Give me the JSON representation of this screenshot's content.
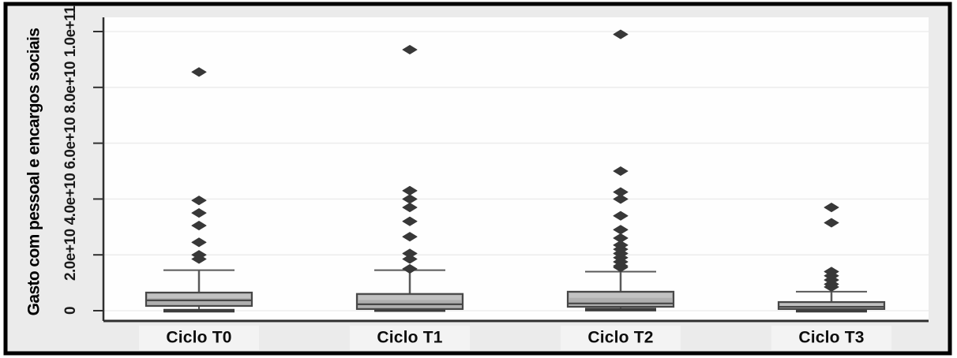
{
  "figure": {
    "ylabel": "Gasto com pessoal e encargos sociais"
  },
  "chart_data": {
    "type": "box",
    "title": "",
    "xlabel": "",
    "ylabel": "Gasto com pessoal e encargos sociais",
    "categories": [
      "Ciclo T0",
      "Ciclo T1",
      "Ciclo T2",
      "Ciclo T3"
    ],
    "y_tick_labels": [
      "0",
      "2.0e+10",
      "4.0e+10",
      "6.0e+10",
      "8.0e+10",
      "1.0e+11"
    ],
    "y_ticks": [
      0,
      20000000000.0,
      40000000000.0,
      60000000000.0,
      80000000000.0,
      100000000000.0
    ],
    "ylim": [
      -3700000000.0,
      105000000000.0
    ],
    "grid": "horizontal",
    "legend": "none",
    "groups": [
      {
        "label": "Ciclo T0",
        "whisker_low": 0,
        "q1": 1700000000.0,
        "median": 3700000000.0,
        "q3": 6500000000.0,
        "whisker_high": 14500000000.0,
        "outliers": [
          18500000000.0,
          20000000000.0,
          24500000000.0,
          30500000000.0,
          35000000000.0,
          39500000000.0,
          85500000000.0
        ]
      },
      {
        "label": "Ciclo T1",
        "whisker_low": 200000000.0,
        "q1": 600000000.0,
        "median": 2300000000.0,
        "q3": 6000000000.0,
        "whisker_high": 14500000000.0,
        "outliers": [
          15000000000.0,
          18500000000.0,
          20500000000.0,
          26500000000.0,
          32000000000.0,
          37000000000.0,
          40000000000.0,
          43000000000.0,
          93500000000.0
        ]
      },
      {
        "label": "Ciclo T2",
        "whisker_low": 400000000.0,
        "q1": 1400000000.0,
        "median": 2600000000.0,
        "q3": 6800000000.0,
        "whisker_high": 14000000000.0,
        "outliers": [
          15500000000.0,
          16000000000.0,
          17500000000.0,
          19000000000.0,
          20500000000.0,
          22000000000.0,
          23500000000.0,
          26000000000.0,
          29000000000.0,
          34000000000.0,
          40000000000.0,
          42500000000.0,
          50000000000.0,
          99000000000.0
        ]
      },
      {
        "label": "Ciclo T3",
        "whisker_low": 0,
        "q1": 600000000.0,
        "median": 1400000000.0,
        "q3": 3100000000.0,
        "whisker_high": 6800000000.0,
        "outliers": [
          8500000000.0,
          9500000000.0,
          11000000000.0,
          12500000000.0,
          14000000000.0,
          31500000000.0,
          37000000000.0
        ]
      }
    ],
    "colors": {
      "frame_border": "#000000",
      "figure_bg": "#ebebeb",
      "plot_bg": "#fefefe",
      "grid_line": "#ededed",
      "axis_line": "#2f2f2f",
      "box_fill": "#afafaf",
      "box_highlight": "#c2c2c2",
      "box_border": "#474747",
      "median_line": "#474747",
      "whisker": "#595959",
      "whisker_low_cap": "#3d3d3d",
      "outlier": "#383838",
      "xlabel_bg": "#f3f3f3"
    }
  }
}
